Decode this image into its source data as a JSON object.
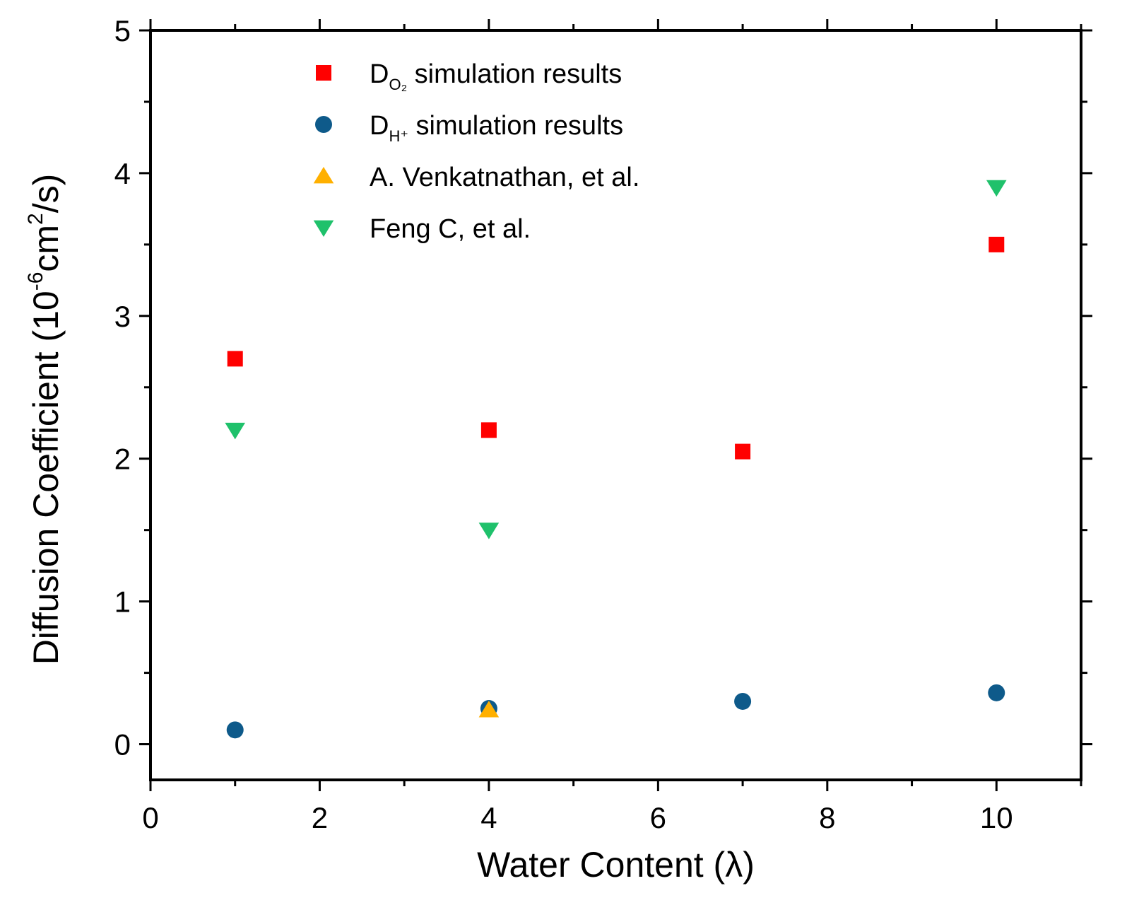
{
  "chart_data": {
    "type": "scatter",
    "title": "",
    "xlabel": "Water Content (λ)",
    "ylabel": {
      "prefix": "Diffusion Coefficient (10",
      "exp1": "-6",
      "mid": "cm",
      "exp2": "2",
      "suffix": "/s)"
    },
    "xlim": [
      0,
      11
    ],
    "ylim": [
      -0.25,
      5
    ],
    "x_ticks": [
      0,
      2,
      4,
      6,
      8,
      10
    ],
    "y_ticks": [
      0,
      1,
      2,
      3,
      4,
      5
    ],
    "legend_position": "top-left",
    "series": [
      {
        "name": "D_O2 simulation results",
        "label_main": "D",
        "label_sub": "O₂",
        "label_rest": " simulation results",
        "marker": "square",
        "color": "#ff0000",
        "x": [
          1,
          4,
          7,
          10
        ],
        "y": [
          2.7,
          2.2,
          2.05,
          3.5
        ]
      },
      {
        "name": "D_H+ simulation results",
        "label_main": "D",
        "label_sub": "H⁺",
        "label_rest": " simulation results",
        "marker": "circle",
        "color": "#0e5a8a",
        "x": [
          1,
          4,
          7,
          10
        ],
        "y": [
          0.1,
          0.25,
          0.3,
          0.36
        ]
      },
      {
        "name": "A. Venkatnathan, et al.",
        "label_main": "A. Venkatnathan, et al.",
        "label_sub": "",
        "label_rest": "",
        "marker": "triangle-up",
        "color": "#ffb000",
        "x": [
          4
        ],
        "y": [
          0.24
        ]
      },
      {
        "name": "Feng C, et al.",
        "label_main": "Feng C, et al.",
        "label_sub": "",
        "label_rest": "",
        "marker": "triangle-down",
        "color": "#1fc16b",
        "x": [
          1,
          4,
          10
        ],
        "y": [
          2.2,
          1.5,
          3.9
        ]
      }
    ]
  }
}
